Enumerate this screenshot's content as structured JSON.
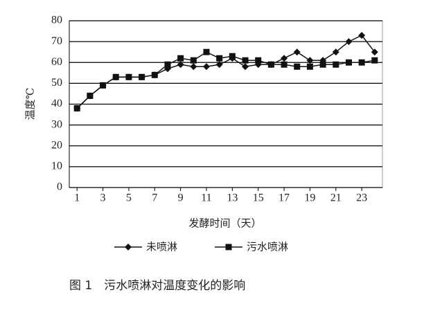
{
  "chart_data": {
    "type": "line",
    "y_label": "温度℃",
    "x_label": "发酵时间（天）",
    "caption": "图 1　污水喷淋对温度变化的影响",
    "x": [
      1,
      2,
      3,
      4,
      5,
      6,
      7,
      8,
      9,
      10,
      11,
      12,
      13,
      14,
      15,
      16,
      17,
      18,
      19,
      20,
      21,
      22,
      23,
      24
    ],
    "xlim": [
      0.4,
      24.6
    ],
    "xticks": [
      1,
      3,
      5,
      7,
      9,
      11,
      13,
      15,
      17,
      19,
      21,
      23
    ],
    "ylim": [
      0,
      80
    ],
    "yticks": [
      0,
      10,
      20,
      30,
      40,
      50,
      60,
      70,
      80
    ],
    "grid": true,
    "legend": "bottom",
    "series": [
      {
        "name": "未喷淋",
        "color": "#111111",
        "marker": "diamond",
        "values": [
          38,
          44,
          49,
          53,
          53,
          53,
          54,
          57,
          59,
          58,
          58,
          59,
          62,
          58,
          59,
          59,
          62,
          65,
          61,
          61,
          65,
          70,
          73,
          65
        ]
      },
      {
        "name": "污水喷淋",
        "color": "#111111",
        "marker": "square",
        "values": [
          38,
          44,
          49,
          53,
          53,
          53,
          54,
          59,
          62,
          61,
          65,
          62,
          63,
          61,
          61,
          59,
          59,
          58,
          58,
          59,
          59,
          60,
          60,
          61
        ]
      }
    ]
  }
}
